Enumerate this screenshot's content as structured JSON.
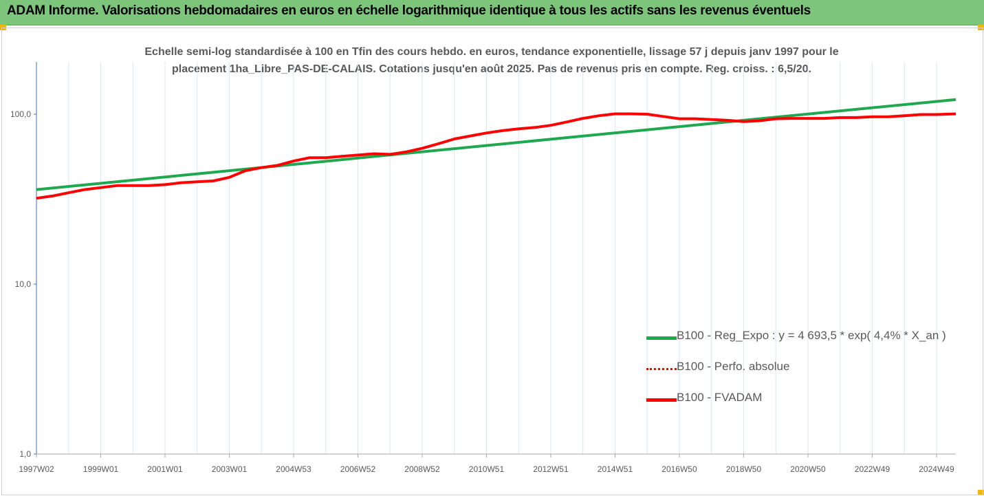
{
  "header": {
    "title": "ADAM Informe. Valorisations hebdomadaires en euros en échelle logarithmique identique à tous les actifs sans les revenus éventuels"
  },
  "colors": {
    "header_bg": "#7cc57a",
    "corner_accent": "#f2b705",
    "reg_line": "#1fa84f",
    "fvadam_line": "#ff0000",
    "perfo_line": "#ff0000",
    "gridline": "#d9e7f3"
  },
  "chart_data": {
    "type": "line",
    "title": "Echelle semi-log standardisée à 100 en Tfin des cours hebdo. en euros, tendance exponentielle, lissage 57 j depuis janv 1997 pour le placement 1ha_Libre_PAS-DE-CALAIS. Cotations jusqu'en août 2025. Pas de revenus pris en compte. Reg. croiss. : 6,5/20.",
    "title_lines": [
      "Echelle semi-log standardisée à 100 en Tfin des cours hebdo. en euros, tendance exponentielle, lissage 57 j depuis janv 1997 pour le",
      "placement 1ha_Libre_PAS-DE-CALAIS. Cotations jusqu'en août 2025. Pas de revenus pris en compte. Reg. croiss. : 6,5/20."
    ],
    "y_scale": "log",
    "ylim": [
      1,
      200
    ],
    "y_ticks": [
      {
        "value": 1,
        "label": "1,0"
      },
      {
        "value": 10,
        "label": "10,0"
      },
      {
        "value": 100,
        "label": "100,0"
      }
    ],
    "xlim": [
      1997.0,
      2025.6
    ],
    "x_ticks": [
      {
        "value": 1997.0,
        "label": "1997W02"
      },
      {
        "value": 1999.0,
        "label": "1999W01"
      },
      {
        "value": 2001.0,
        "label": "2001W01"
      },
      {
        "value": 2003.0,
        "label": "2003W01"
      },
      {
        "value": 2005.0,
        "label": "2004W53"
      },
      {
        "value": 2007.0,
        "label": "2006W52"
      },
      {
        "value": 2009.0,
        "label": "2008W52"
      },
      {
        "value": 2011.0,
        "label": "2010W51"
      },
      {
        "value": 2013.0,
        "label": "2012W51"
      },
      {
        "value": 2015.0,
        "label": "2014W51"
      },
      {
        "value": 2017.0,
        "label": "2016W50"
      },
      {
        "value": 2019.0,
        "label": "2018W50"
      },
      {
        "value": 2021.0,
        "label": "2020W50"
      },
      {
        "value": 2023.0,
        "label": "2022W49"
      },
      {
        "value": 2025.0,
        "label": "2024W49"
      }
    ],
    "grid": "vertical",
    "legend_position": "bottom-right",
    "series": [
      {
        "name": "B100 - Reg_Expo : y = 4 693,5 * exp( 4,4% *  X_an )",
        "style": "solid-green",
        "x": [
          1997.0,
          2025.6
        ],
        "y": [
          36.0,
          122.0
        ]
      },
      {
        "name": "B100 - Perfo. absolue",
        "style": "dotted-red",
        "x": [],
        "y": []
      },
      {
        "name": "B100 - FVADAM",
        "style": "solid-red",
        "x": [
          1997.0,
          1997.5,
          1998.0,
          1998.5,
          1999.0,
          1999.5,
          2000.0,
          2000.5,
          2001.0,
          2001.5,
          2002.0,
          2002.5,
          2003.0,
          2003.5,
          2004.0,
          2004.5,
          2005.0,
          2005.5,
          2006.0,
          2006.5,
          2007.0,
          2007.5,
          2008.0,
          2008.5,
          2009.0,
          2009.5,
          2010.0,
          2010.5,
          2011.0,
          2011.5,
          2012.0,
          2012.5,
          2013.0,
          2013.5,
          2014.0,
          2014.5,
          2015.0,
          2015.5,
          2016.0,
          2016.5,
          2017.0,
          2017.5,
          2018.0,
          2018.5,
          2019.0,
          2019.5,
          2020.0,
          2020.5,
          2021.0,
          2021.5,
          2022.0,
          2022.5,
          2023.0,
          2023.5,
          2024.0,
          2024.5,
          2025.0,
          2025.6
        ],
        "y": [
          32.0,
          33.0,
          34.5,
          36.0,
          37.0,
          38.0,
          38.0,
          38.0,
          38.5,
          39.5,
          40.0,
          40.5,
          42.5,
          46.5,
          48.5,
          50.0,
          53.0,
          55.5,
          55.5,
          56.5,
          57.5,
          58.5,
          58.0,
          60.0,
          63.0,
          67.0,
          71.5,
          74.5,
          77.5,
          80.0,
          82.0,
          83.5,
          86.0,
          90.0,
          94.5,
          98.0,
          100.5,
          100.5,
          100.0,
          97.0,
          94.0,
          94.0,
          93.0,
          92.0,
          90.5,
          91.5,
          94.0,
          94.5,
          94.5,
          94.5,
          95.5,
          95.5,
          96.5,
          96.5,
          98.0,
          99.5,
          99.5,
          100.5
        ]
      }
    ]
  }
}
